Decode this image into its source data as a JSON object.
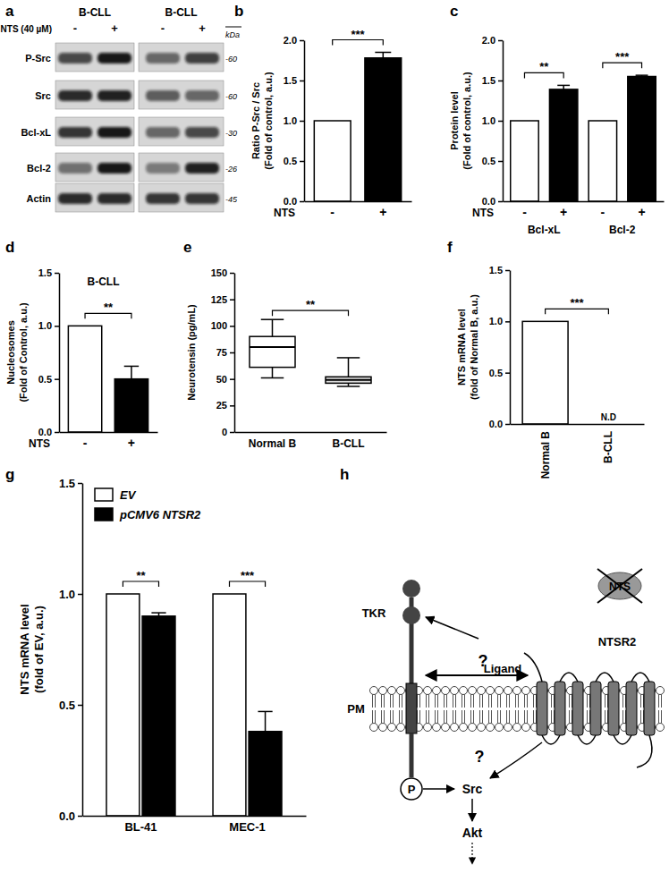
{
  "chart_data": [
    {
      "type": "bar",
      "panel_label": "b",
      "ylabel": [
        "Ratio P-Src / Src",
        "(Fold of control, a.u.)"
      ],
      "xlabel": "NTS",
      "categories": [
        "-",
        "+"
      ],
      "values": [
        1.0,
        1.78
      ],
      "errors": [
        null,
        0.07
      ],
      "colors": [
        "#ffffff",
        "#000000"
      ],
      "ylim": [
        0,
        2
      ],
      "yticks": [
        {
          "value": 0,
          "label": "0.0"
        },
        0.5,
        {
          "value": 1,
          "label": "1.0"
        },
        1.5,
        {
          "value": 2,
          "label": "2.0"
        }
      ],
      "significance": [
        "***"
      ]
    },
    {
      "type": "bar",
      "panel_label": "c",
      "ylabel": [
        "Protein level",
        "(Fold of control, a.u.)"
      ],
      "xlabel": "NTS",
      "categories": [
        "-",
        "+",
        "-",
        "+"
      ],
      "groups": [
        "Bcl-xL",
        "Bcl-2"
      ],
      "values": [
        1.0,
        1.39,
        1.0,
        1.55
      ],
      "errors": [
        null,
        0.05,
        null,
        0.015
      ],
      "colors": [
        "#ffffff",
        "#000000",
        "#ffffff",
        "#000000"
      ],
      "ylim": [
        0,
        2
      ],
      "yticks": [
        {
          "value": 0,
          "label": "0.0"
        },
        0.5,
        {
          "value": 1,
          "label": "1.0"
        },
        1.5,
        {
          "value": 2,
          "label": "2.0"
        }
      ],
      "significance": [
        "**",
        "***"
      ]
    },
    {
      "type": "bar",
      "panel_label": "d",
      "title": "B-CLL",
      "ylabel": [
        "Nucleosomes",
        "(Fold of Control, a.u.)"
      ],
      "xlabel": "NTS",
      "categories": [
        "-",
        "+"
      ],
      "values": [
        1.0,
        0.5
      ],
      "errors": [
        null,
        0.12
      ],
      "colors": [
        "#ffffff",
        "#000000"
      ],
      "ylim": [
        0,
        1.5
      ],
      "yticks": [
        {
          "value": 0,
          "label": "0.0"
        },
        0.5,
        {
          "value": 1,
          "label": "1.0"
        },
        1.5
      ],
      "significance": [
        "**"
      ]
    },
    {
      "type": "box",
      "panel_label": "e",
      "ylabel": "Neurotensin (pg/mL)",
      "categories": [
        "Normal B",
        "B-CLL"
      ],
      "boxes": [
        {
          "min": 51,
          "q1": 61,
          "median": 80,
          "q3": 90,
          "max": 106
        },
        {
          "min": 43,
          "q1": 46,
          "median": 49,
          "q3": 52,
          "max": 70
        }
      ],
      "colors": [
        "#ffffff",
        "#d9d9d9"
      ],
      "ylim": [
        0,
        150
      ],
      "yticks": [
        0,
        25,
        50,
        75,
        100,
        125,
        150
      ],
      "significance": [
        "**"
      ]
    },
    {
      "type": "bar",
      "panel_label": "f",
      "ylabel": [
        "NTS mRNA level",
        "(fold of Normal B, a.u.)"
      ],
      "categories": [
        "Normal B",
        "B-CLL"
      ],
      "values": [
        1.0,
        null
      ],
      "errors": [
        null,
        null
      ],
      "bar_notes": [
        null,
        "N.D"
      ],
      "colors": [
        "#ffffff",
        "#000000"
      ],
      "ylim": [
        0,
        1.5
      ],
      "yticks": [
        {
          "value": 0,
          "label": "0.0"
        },
        0.5,
        {
          "value": 1,
          "label": "1.0"
        },
        1.5
      ],
      "significance": [
        "***"
      ]
    },
    {
      "type": "bar",
      "panel_label": "g",
      "ylabel": [
        "NTS mRNA level",
        "(fold of EV, a.u.)"
      ],
      "categories": [
        "BL-41",
        "MEC-1"
      ],
      "series": [
        {
          "name": "EV",
          "color": "#ffffff",
          "values": [
            1.0,
            1.0
          ],
          "errors": [
            null,
            null
          ]
        },
        {
          "name": "pCMV6 NTSR2",
          "color": "#000000",
          "values": [
            0.9,
            0.38
          ],
          "errors": [
            0.015,
            0.09
          ]
        }
      ],
      "legend": "upper left",
      "ylim": [
        0,
        1.5
      ],
      "yticks": [
        {
          "value": 0,
          "label": "0.0"
        },
        0.5,
        {
          "value": 1,
          "label": "1.0"
        },
        1.5
      ],
      "significance": [
        "**",
        "***"
      ]
    }
  ],
  "blot": {
    "panel_label": "a",
    "columns": [
      "B-CLL",
      "B-CLL"
    ],
    "treatment": "NTS (40 µM)",
    "lanes": [
      "-",
      "+",
      "-",
      "+"
    ],
    "rows": [
      {
        "label": "P-Src",
        "kda": "-60"
      },
      {
        "label": "Src",
        "kda": "-60"
      },
      {
        "label": "Bcl-xL",
        "kda": "-30"
      },
      {
        "label": "Bcl-2",
        "kda": "-26"
      },
      {
        "label": "Actin",
        "kda": "-45"
      }
    ],
    "unit": "kDa"
  },
  "diagram": {
    "panel_label": "h",
    "labels": {
      "tkr": "TKR",
      "ligand": "Ligand",
      "nts": "NTS",
      "ntsr2": "NTSR2",
      "pm": "PM",
      "question_1": "?",
      "question_2": "?",
      "phospho": "P",
      "src": "Src",
      "akt": "Akt"
    }
  }
}
